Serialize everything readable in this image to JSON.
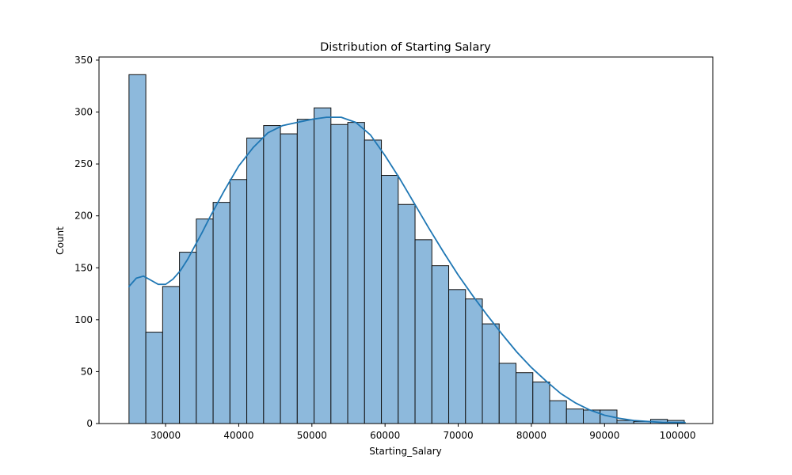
{
  "chart_data": {
    "type": "bar",
    "title": "Distribution of Starting Salary",
    "xlabel": "Starting_Salary",
    "ylabel": "Count",
    "xlim": [
      20900,
      104800
    ],
    "ylim": [
      0,
      353
    ],
    "xticks": [
      30000,
      40000,
      50000,
      60000,
      70000,
      80000,
      90000,
      100000
    ],
    "yticks": [
      0,
      50,
      100,
      150,
      200,
      250,
      300,
      350
    ],
    "bin_edges": [
      25000,
      27300,
      29600,
      31900,
      34200,
      36500,
      38800,
      41100,
      43400,
      45700,
      48000,
      50300,
      52600,
      54900,
      57200,
      59500,
      61800,
      64100,
      66400,
      68700,
      71000,
      73300,
      75600,
      77900,
      80200,
      82500,
      84800,
      87100,
      89400,
      91700,
      94000,
      96300,
      98600,
      100900
    ],
    "counts": [
      336,
      88,
      132,
      165,
      197,
      213,
      235,
      275,
      287,
      279,
      293,
      304,
      288,
      290,
      273,
      239,
      211,
      177,
      152,
      129,
      120,
      96,
      58,
      49,
      40,
      22,
      14,
      13,
      13,
      3,
      2,
      4,
      3
    ],
    "kde": {
      "x": [
        25000,
        26000,
        27000,
        28000,
        29000,
        30000,
        31000,
        32000,
        33000,
        34000,
        35000,
        36000,
        38000,
        40000,
        42000,
        44000,
        46000,
        48000,
        50000,
        52000,
        54000,
        56000,
        58000,
        60000,
        62000,
        64000,
        66000,
        68000,
        70000,
        72000,
        74000,
        76000,
        78000,
        80000,
        82000,
        84000,
        86000,
        88000,
        90000,
        92000,
        94000,
        96000,
        98000,
        100000,
        101000
      ],
      "y": [
        132,
        140,
        142,
        138,
        134,
        134,
        139,
        147,
        158,
        171,
        184,
        198,
        224,
        248,
        266,
        280,
        287,
        290,
        293,
        295,
        295,
        290,
        278,
        258,
        236,
        212,
        188,
        165,
        143,
        123,
        104,
        86,
        69,
        54,
        41,
        29,
        20,
        13,
        8,
        5,
        3,
        2,
        1,
        1,
        1
      ]
    },
    "colors": {
      "bar_fill": "#8db9dc",
      "bar_edge": "#111111",
      "kde_line": "#1f77b4"
    },
    "grid": false,
    "legend": "none"
  }
}
